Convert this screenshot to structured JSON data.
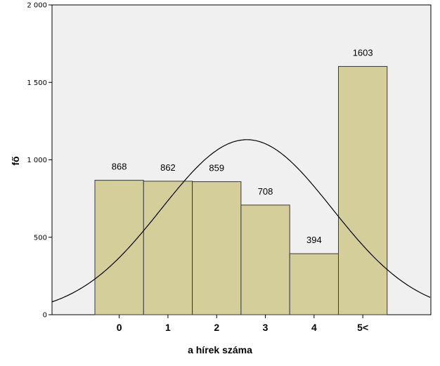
{
  "chart_data": {
    "type": "bar",
    "title": "",
    "xlabel": "a hírek száma",
    "ylabel": "fő",
    "categories": [
      "0",
      "1",
      "2",
      "3",
      "4",
      "5<"
    ],
    "values": [
      868,
      862,
      859,
      708,
      394,
      1603
    ],
    "data_labels": [
      "868",
      "862",
      "859",
      "708",
      "394",
      "1603"
    ],
    "ylim": [
      0,
      2000
    ],
    "yticks": [
      0,
      500,
      1000,
      1500,
      2000
    ],
    "ytick_labels": [
      "0",
      "500",
      "1 000",
      "1 500",
      "2 000"
    ],
    "grid": false,
    "normal_curve": {
      "shown": true,
      "mean_category_index": 2.62,
      "sd_categories": 1.75,
      "peak_value": 1130
    },
    "colors": {
      "bar_fill": "#d3ce9a",
      "bar_stroke": "#3a3a3a",
      "plot_background": "#f0f0f0",
      "curve": "#000000"
    }
  }
}
